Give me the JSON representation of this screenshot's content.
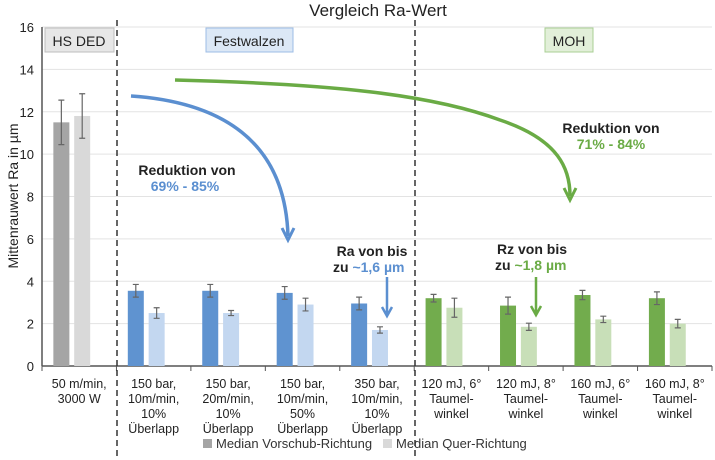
{
  "chart_data": {
    "type": "bar",
    "title": "Vergleich Ra-Wert",
    "ylabel": "Mittenrauwert Ra in µm",
    "xlabel": "",
    "ylim": [
      0,
      16
    ],
    "yticks": [
      "0",
      "2",
      "4",
      "6",
      "8",
      "10",
      "12",
      "14",
      "16"
    ],
    "grid": true,
    "categories": [
      [
        "50 m/min,",
        "3000 W"
      ],
      [
        "150 bar,",
        "10m/min,",
        "10%",
        "Überlapp"
      ],
      [
        "150 bar,",
        "20m/min,",
        "10%",
        "Überlapp"
      ],
      [
        "150 bar,",
        "10m/min,",
        "50%",
        "Überlapp"
      ],
      [
        "350 bar,",
        "10m/min,",
        "10%",
        "Überlapp"
      ],
      [
        "120 mJ, 6°",
        "Taumel-",
        "winkel"
      ],
      [
        "120 mJ, 8°",
        "Taumel-",
        "winkel"
      ],
      [
        "160 mJ, 6°",
        "Taumel-",
        "winkel"
      ],
      [
        "160 mJ, 8°",
        "Taumel-",
        "winkel"
      ]
    ],
    "groups": [
      "HS DED",
      "Festwalzen",
      "Festwalzen",
      "Festwalzen",
      "Festwalzen",
      "MOH",
      "MOH",
      "MOH",
      "MOH"
    ],
    "series": [
      {
        "name": "Median Vorschub-Richtung",
        "values": [
          11.5,
          3.55,
          3.55,
          3.45,
          2.95,
          3.2,
          2.85,
          3.35,
          3.2
        ],
        "errors": [
          1.05,
          0.3,
          0.3,
          0.3,
          0.3,
          0.18,
          0.4,
          0.22,
          0.3
        ]
      },
      {
        "name": "Median Quer-Richtung",
        "values": [
          11.8,
          2.5,
          2.5,
          2.9,
          1.7,
          2.75,
          1.85,
          2.2,
          2.0
        ],
        "errors": [
          1.05,
          0.25,
          0.12,
          0.3,
          0.15,
          0.45,
          0.17,
          0.15,
          0.2
        ]
      }
    ],
    "section_labels": [
      "HS DED",
      "Festwalzen",
      "MOH"
    ],
    "legend_position": "bottom",
    "annotations": {
      "fw_reduction_title": "Reduktion von",
      "fw_reduction_value": "69% - 85%",
      "moh_reduction_title": "Reduktion von",
      "moh_reduction_value": "71% - 84%",
      "ra_line1": "Ra von bis",
      "ra_line2_prefix": "zu ",
      "ra_line2_value": "~1,6 µm",
      "rz_line1": "Rz von bis",
      "rz_line2_prefix": "zu ",
      "rz_line2_value": "~1,8 µm"
    }
  },
  "colors": {
    "grey_dark": "#a5a5a5",
    "grey_light": "#d9d9d9",
    "blue_dark": "#5f93d0",
    "blue_light": "#c3d7f0",
    "green_dark": "#72ac4d",
    "green_light": "#c8dfb8",
    "blue_text": "#5b8fd0",
    "green_text": "#6aab45"
  }
}
